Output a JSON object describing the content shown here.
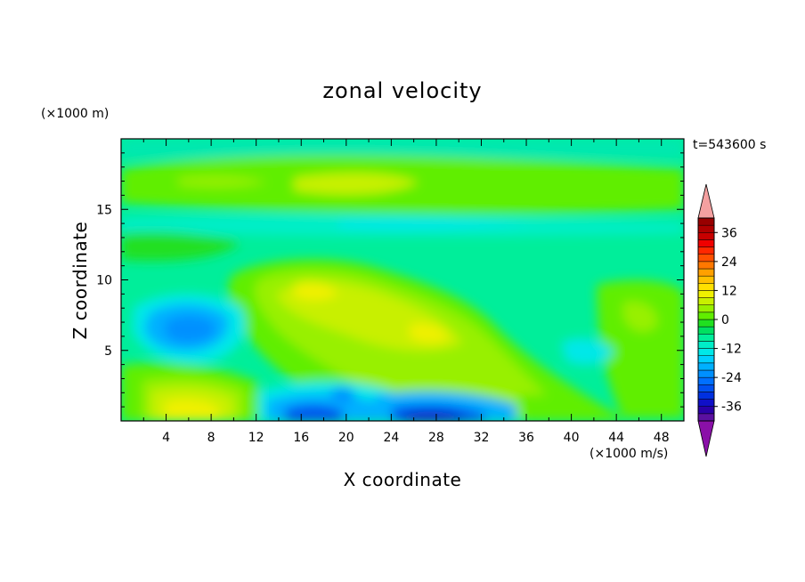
{
  "chart_data": {
    "type": "heatmap",
    "title": "zonal velocity",
    "xlabel": "X coordinate",
    "ylabel": "Z coordinate",
    "x_unit": "(×1000 m/s)",
    "y_unit": "(×1000 m)",
    "time_label": "t=543600 s",
    "xlim": [
      0,
      50
    ],
    "ylim": [
      0,
      20
    ],
    "x_ticks": [
      4,
      8,
      12,
      16,
      20,
      24,
      28,
      32,
      36,
      40,
      44,
      48
    ],
    "y_ticks": [
      5,
      10,
      15
    ],
    "colorbar": {
      "levels": [
        -42,
        -39,
        -36,
        -33,
        -30,
        -27,
        -24,
        -21,
        -18,
        -15,
        -12,
        -9,
        -6,
        -3,
        0,
        3,
        6,
        9,
        12,
        15,
        18,
        21,
        24,
        27,
        30,
        33,
        36,
        39,
        42
      ],
      "colors": [
        "#5a10a0",
        "#2a00a8",
        "#1010c8",
        "#0030e0",
        "#0050f0",
        "#0070ff",
        "#0090ff",
        "#00b0ff",
        "#00d0ff",
        "#00e8e8",
        "#00eec8",
        "#00ee9a",
        "#00e060",
        "#20e020",
        "#60ee00",
        "#98f000",
        "#c8f000",
        "#f0f000",
        "#ffe000",
        "#ffc000",
        "#ffa000",
        "#ff7800",
        "#ff5000",
        "#ff2800",
        "#f00000",
        "#c80000",
        "#b00000",
        "#980000"
      ],
      "tick_labels": [
        "36",
        "24",
        "12",
        "0",
        "-12",
        "-24",
        "-36"
      ],
      "tick_values": [
        36,
        24,
        12,
        0,
        -12,
        -24,
        -36
      ],
      "over_color": "#f4a0a0",
      "under_color": "#8a10a8"
    },
    "field_summary": [
      {
        "x": 20,
        "z": 8.5,
        "value": 10
      },
      {
        "x": 6,
        "z": 6.5,
        "value": -20
      },
      {
        "x": 7,
        "z": 1,
        "value": 12
      },
      {
        "x": 17,
        "z": 0.5,
        "value": -25
      },
      {
        "x": 26,
        "z": 0.4,
        "value": -28
      },
      {
        "x": 21,
        "z": 17,
        "value": 6
      },
      {
        "x": 30,
        "z": 13.5,
        "value": -6
      }
    ]
  }
}
